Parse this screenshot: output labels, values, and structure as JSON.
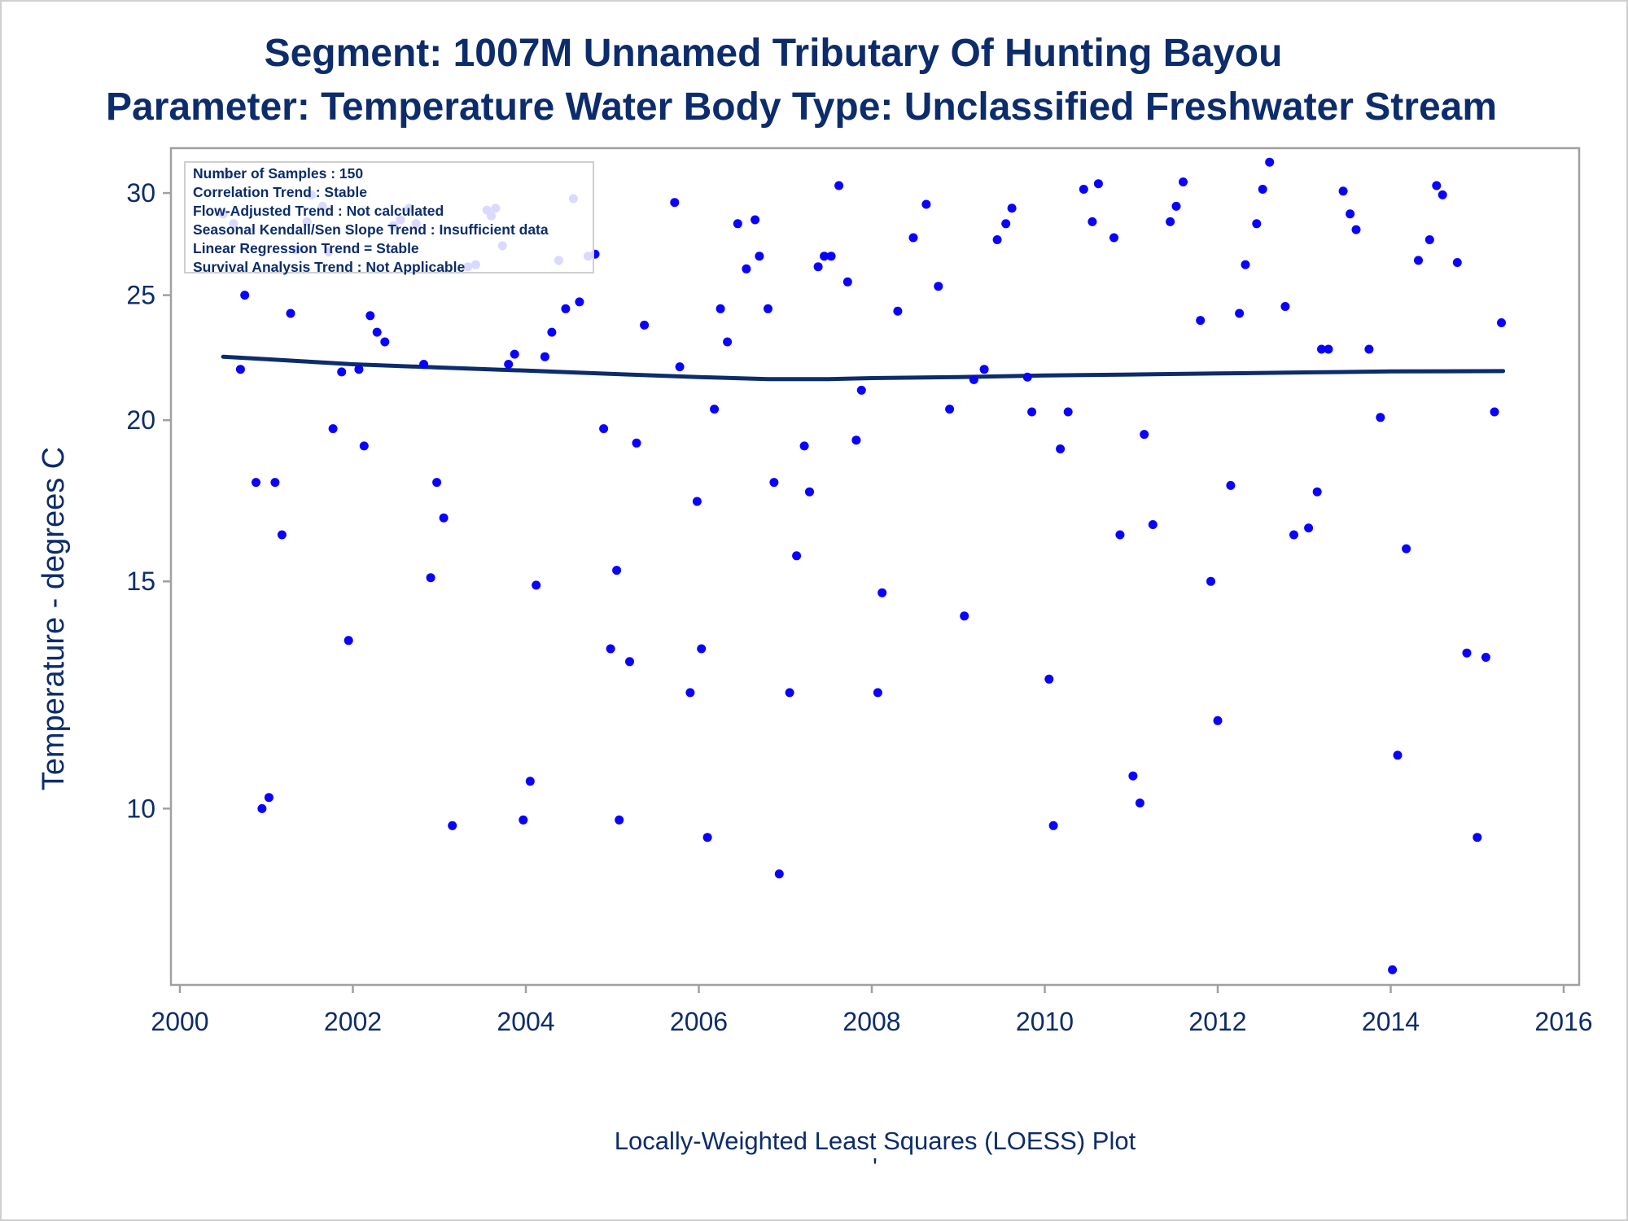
{
  "title": "Segment: 1007M  Unnamed Tributary Of Hunting Bayou",
  "subtitle": "Parameter: Temperature   Water Body Type: Unclassified Freshwater Stream",
  "stats": [
    "Number of Samples : 150",
    "Correlation Trend : Stable",
    "Flow-Adjusted Trend : Not calculated",
    "Seasonal Kendall/Sen Slope Trend : Insufficient data",
    "Linear Regression Trend = Stable",
    "Survival Analysis Trend : Not Applicable"
  ],
  "footnote": "Locally-Weighted Least Squares (LOESS) Plot",
  "footnote2": "'",
  "colors": {
    "text": "#0c2c6c",
    "points": "#0a00ff",
    "loess": "#0c2c6c",
    "frame": "#a0a0a0"
  },
  "chart_data": {
    "type": "scatter",
    "title": "Segment: 1007M  Unnamed Tributary Of Hunting Bayou",
    "subtitle": "Parameter: Temperature   Water Body Type: Unclassified Freshwater Stream",
    "xlabel": "",
    "ylabel": "Temperature - degrees C",
    "y_scale": "log",
    "xlim": [
      2000,
      2016
    ],
    "ylim": [
      7.3,
      32.5
    ],
    "x_ticks": [
      2000,
      2002,
      2004,
      2006,
      2008,
      2010,
      2012,
      2014,
      2016
    ],
    "y_ticks": [
      10,
      15,
      20,
      25,
      30
    ],
    "grid": false,
    "series": [
      {
        "kind": "points",
        "points": [
          [
            2000.5,
            28.9
          ],
          [
            2000.53,
            31.0
          ],
          [
            2000.62,
            28.4
          ],
          [
            2000.7,
            21.9
          ],
          [
            2000.75,
            25.0
          ],
          [
            2000.88,
            17.9
          ],
          [
            2000.95,
            10.0
          ],
          [
            2001.03,
            10.2
          ],
          [
            2001.1,
            17.9
          ],
          [
            2001.18,
            16.3
          ],
          [
            2001.28,
            24.2
          ],
          [
            2001.35,
            27.1
          ],
          [
            2001.47,
            28.5
          ],
          [
            2001.52,
            29.9
          ],
          [
            2001.65,
            29.3
          ],
          [
            2001.72,
            27.0
          ],
          [
            2001.77,
            19.7
          ],
          [
            2001.87,
            21.8
          ],
          [
            2001.95,
            13.5
          ],
          [
            2002.07,
            21.9
          ],
          [
            2002.13,
            19.1
          ],
          [
            2002.2,
            24.1
          ],
          [
            2002.28,
            23.4
          ],
          [
            2002.37,
            23.0
          ],
          [
            2002.47,
            28.3
          ],
          [
            2002.55,
            28.6
          ],
          [
            2002.65,
            29.2
          ],
          [
            2002.73,
            28.4
          ],
          [
            2002.82,
            22.1
          ],
          [
            2002.9,
            15.1
          ],
          [
            2002.97,
            17.9
          ],
          [
            2003.05,
            16.8
          ],
          [
            2003.15,
            9.7
          ],
          [
            2003.33,
            26.3
          ],
          [
            2003.42,
            26.4
          ],
          [
            2003.55,
            29.1
          ],
          [
            2003.6,
            28.8
          ],
          [
            2003.65,
            29.2
          ],
          [
            2003.73,
            27.3
          ],
          [
            2003.8,
            22.1
          ],
          [
            2003.87,
            22.5
          ],
          [
            2003.97,
            9.8
          ],
          [
            2004.05,
            10.5
          ],
          [
            2004.12,
            14.9
          ],
          [
            2004.22,
            22.4
          ],
          [
            2004.3,
            23.4
          ],
          [
            2004.38,
            26.6
          ],
          [
            2004.46,
            24.4
          ],
          [
            2004.55,
            29.7
          ],
          [
            2004.62,
            24.7
          ],
          [
            2004.72,
            26.8
          ],
          [
            2004.8,
            26.9
          ],
          [
            2004.9,
            19.7
          ],
          [
            2004.98,
            13.3
          ],
          [
            2005.05,
            15.3
          ],
          [
            2005.08,
            9.8
          ],
          [
            2005.2,
            13.0
          ],
          [
            2005.28,
            19.2
          ],
          [
            2005.37,
            23.7
          ],
          [
            2005.72,
            29.5
          ],
          [
            2005.78,
            22.0
          ],
          [
            2005.9,
            12.3
          ],
          [
            2005.98,
            17.3
          ],
          [
            2006.03,
            13.3
          ],
          [
            2006.1,
            9.5
          ],
          [
            2006.18,
            20.4
          ],
          [
            2006.25,
            24.4
          ],
          [
            2006.33,
            23.0
          ],
          [
            2006.45,
            28.4
          ],
          [
            2006.55,
            26.2
          ],
          [
            2006.65,
            28.6
          ],
          [
            2006.7,
            26.8
          ],
          [
            2006.8,
            24.4
          ],
          [
            2006.87,
            17.9
          ],
          [
            2006.93,
            8.9
          ],
          [
            2007.05,
            12.3
          ],
          [
            2007.13,
            15.7
          ],
          [
            2007.22,
            19.1
          ],
          [
            2007.28,
            17.6
          ],
          [
            2007.38,
            26.3
          ],
          [
            2007.45,
            26.8
          ],
          [
            2007.53,
            26.8
          ],
          [
            2007.62,
            30.4
          ],
          [
            2007.72,
            25.6
          ],
          [
            2007.82,
            19.3
          ],
          [
            2007.88,
            21.1
          ],
          [
            2008.07,
            12.3
          ],
          [
            2008.12,
            14.7
          ],
          [
            2008.3,
            24.3
          ],
          [
            2008.48,
            27.7
          ],
          [
            2008.63,
            29.4
          ],
          [
            2008.77,
            25.4
          ],
          [
            2008.9,
            20.4
          ],
          [
            2009.07,
            14.1
          ],
          [
            2009.18,
            21.5
          ],
          [
            2009.3,
            21.9
          ],
          [
            2009.45,
            27.6
          ],
          [
            2009.55,
            28.4
          ],
          [
            2009.62,
            29.2
          ],
          [
            2009.8,
            21.6
          ],
          [
            2009.85,
            20.3
          ],
          [
            2010.05,
            12.6
          ],
          [
            2010.1,
            9.7
          ],
          [
            2010.18,
            19.0
          ],
          [
            2010.27,
            20.3
          ],
          [
            2010.45,
            30.2
          ],
          [
            2010.55,
            28.5
          ],
          [
            2010.62,
            30.5
          ],
          [
            2010.8,
            27.7
          ],
          [
            2010.87,
            16.3
          ],
          [
            2011.02,
            10.6
          ],
          [
            2011.1,
            10.1
          ],
          [
            2011.15,
            19.5
          ],
          [
            2011.25,
            16.6
          ],
          [
            2011.45,
            28.5
          ],
          [
            2011.52,
            29.3
          ],
          [
            2011.6,
            30.6
          ],
          [
            2011.8,
            23.9
          ],
          [
            2011.92,
            15.0
          ],
          [
            2012.0,
            11.7
          ],
          [
            2012.15,
            17.8
          ],
          [
            2012.25,
            24.2
          ],
          [
            2012.32,
            26.4
          ],
          [
            2012.45,
            28.4
          ],
          [
            2012.52,
            30.2
          ],
          [
            2012.6,
            31.7
          ],
          [
            2012.78,
            24.5
          ],
          [
            2012.88,
            16.3
          ],
          [
            2013.05,
            16.5
          ],
          [
            2013.15,
            17.6
          ],
          [
            2013.2,
            22.7
          ],
          [
            2013.28,
            22.7
          ],
          [
            2013.45,
            30.1
          ],
          [
            2013.53,
            28.9
          ],
          [
            2013.6,
            28.1
          ],
          [
            2013.75,
            22.7
          ],
          [
            2013.88,
            20.1
          ],
          [
            2014.02,
            7.5
          ],
          [
            2014.08,
            11.0
          ],
          [
            2014.18,
            15.9
          ],
          [
            2014.32,
            26.6
          ],
          [
            2014.45,
            27.6
          ],
          [
            2014.53,
            30.4
          ],
          [
            2014.6,
            29.9
          ],
          [
            2014.77,
            26.5
          ],
          [
            2014.88,
            13.2
          ],
          [
            2015.0,
            9.5
          ],
          [
            2015.1,
            13.1
          ],
          [
            2015.2,
            20.3
          ],
          [
            2015.28,
            23.8
          ]
        ]
      },
      {
        "kind": "loess",
        "points": [
          [
            2000.5,
            22.4
          ],
          [
            2001.0,
            22.3
          ],
          [
            2001.5,
            22.2
          ],
          [
            2002.0,
            22.1
          ],
          [
            2003.0,
            21.97
          ],
          [
            2004.0,
            21.85
          ],
          [
            2005.0,
            21.72
          ],
          [
            2006.0,
            21.6
          ],
          [
            2006.8,
            21.52
          ],
          [
            2007.5,
            21.52
          ],
          [
            2008.0,
            21.56
          ],
          [
            2009.0,
            21.6
          ],
          [
            2010.0,
            21.66
          ],
          [
            2011.0,
            21.7
          ],
          [
            2012.0,
            21.74
          ],
          [
            2013.0,
            21.78
          ],
          [
            2014.0,
            21.82
          ],
          [
            2015.3,
            21.83
          ]
        ]
      }
    ]
  }
}
